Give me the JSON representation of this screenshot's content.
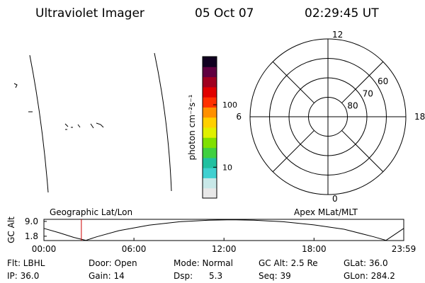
{
  "header": {
    "instrument": "Ultraviolet Imager",
    "date": "05 Oct 07",
    "time": "02:29:45 UT"
  },
  "colorbar": {
    "label": "photon cm⁻²s⁻¹",
    "lim": [
      3.2,
      590
    ],
    "ticks": [
      10,
      100
    ],
    "colors": [
      "#e8e8e8",
      "#c8e8e8",
      "#40d0d0",
      "#20c0a0",
      "#40d040",
      "#80e000",
      "#e0f000",
      "#ffd000",
      "#ff9000",
      "#ff3000",
      "#e00000",
      "#a00020",
      "#600040",
      "#100020"
    ]
  },
  "polar": {
    "lat_lim": [
      50,
      90
    ],
    "lat_rings": [
      60,
      70,
      80
    ],
    "mlt_ticks": [
      12,
      18,
      6,
      0
    ]
  },
  "altitude_plot": {
    "ylabel": "GC Alt",
    "left_label": "Geographic Lat/Lon",
    "right_label": "Apex MLat/MLT",
    "x": [
      0,
      1,
      2,
      2.8,
      3.5,
      5,
      7,
      9,
      11,
      12.5,
      14,
      16,
      18,
      20,
      22,
      22.8,
      23.98
    ],
    "values": [
      5.6,
      3.5,
      1.2,
      -0.2,
      1.5,
      4.5,
      7.2,
      8.8,
      9.6,
      9.8,
      9.6,
      8.8,
      7.3,
      5.2,
      1.5,
      -0.2,
      5.6
    ],
    "xlim": [
      0,
      23.98
    ],
    "ylim": [
      -0.3,
      10
    ],
    "xticks": [
      {
        "value": 0,
        "label": "00:00"
      },
      {
        "value": 6,
        "label": "06:00"
      },
      {
        "value": 12,
        "label": "12:00"
      },
      {
        "value": 18,
        "label": "18:00"
      },
      {
        "value": 23.98,
        "label": "23:59"
      }
    ],
    "yticks": [
      {
        "value": 9,
        "label": "9.0"
      },
      {
        "value": 1.8,
        "label": "1.8"
      }
    ],
    "marker_hour": 2.496,
    "marker_color": "#cc0000",
    "color": "#000000"
  },
  "info": {
    "rows": [
      [
        "Flt: LBHL",
        "Door: Open",
        "Mode: Normal",
        "GC Alt: 2.5 Re",
        "GLat: 36.0"
      ],
      [
        "IP: 36.0",
        "Gain: 14",
        "Dsp:      5.3",
        "Seq: 39",
        "GLon: 284.2"
      ]
    ]
  }
}
